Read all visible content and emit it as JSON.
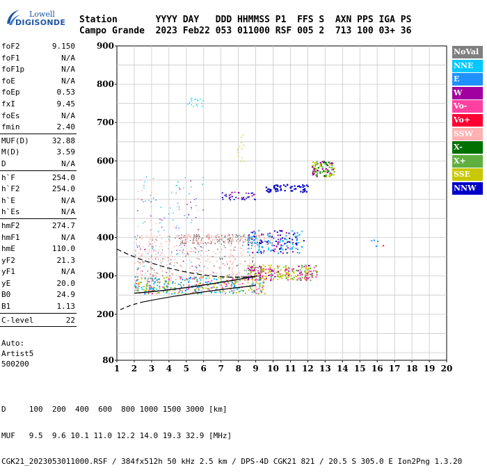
{
  "logo": {
    "line1": "Lowell",
    "line2": "DIGISONDE"
  },
  "header": {
    "labels": "Station       YYYY DAY   DDD HHMMSS P1  FFS S  AXN PPS IGA PS",
    "values": "Campo Grande  2023 Feb22 053 011000 RSF 005 2  713 100 03+ 36"
  },
  "params": [
    {
      "name": "foF2",
      "value": "9.150"
    },
    {
      "name": "foF1",
      "value": "N/A"
    },
    {
      "name": "foF1p",
      "value": "N/A"
    },
    {
      "name": "foE",
      "value": "N/A"
    },
    {
      "name": "foEp",
      "value": "0.53"
    },
    {
      "name": "fxI",
      "value": "9.45"
    },
    {
      "name": "foEs",
      "value": "N/A"
    },
    {
      "name": "fmin",
      "value": "2.40"
    },
    {
      "sep": true
    },
    {
      "name": "MUF(D)",
      "value": "32.88"
    },
    {
      "name": "M(D)",
      "value": "3.59"
    },
    {
      "name": "D",
      "value": "N/A"
    },
    {
      "sep": true
    },
    {
      "name": "h`F",
      "value": "254.0"
    },
    {
      "name": "h`F2",
      "value": "254.0"
    },
    {
      "name": "h`E",
      "value": "N/A"
    },
    {
      "name": "h`Es",
      "value": "N/A"
    },
    {
      "sep": true
    },
    {
      "name": "hmF2",
      "value": "274.7"
    },
    {
      "name": "hmF1",
      "value": "N/A"
    },
    {
      "name": "hmE",
      "value": "110.0"
    },
    {
      "name": "yF2",
      "value": "21.3"
    },
    {
      "name": "yF1",
      "value": "N/A"
    },
    {
      "name": "yE",
      "value": "20.0"
    },
    {
      "name": "B0",
      "value": "24.9"
    },
    {
      "name": "B1",
      "value": "1.13"
    },
    {
      "sep": true
    },
    {
      "name": "C-level",
      "value": "22"
    },
    {
      "sep": true
    }
  ],
  "auto": {
    "line1": "Auto:",
    "line2": "Artist5",
    "line3": "500200"
  },
  "axes": {
    "y_ticks": [
      "900",
      "800",
      "700",
      "600",
      "500",
      "400",
      "300",
      "200",
      "80"
    ],
    "x_ticks": [
      "1",
      "2",
      "3",
      "4",
      "5",
      "6",
      "7",
      "8",
      "9",
      "10",
      "11",
      "12",
      "13",
      "14",
      "15",
      "16",
      "17",
      "18",
      "19",
      "20"
    ]
  },
  "legend": [
    {
      "label": "NoVal",
      "color": "#808080"
    },
    {
      "label": "NNE",
      "color": "#00c8ff"
    },
    {
      "label": "E",
      "color": "#1e90ff"
    },
    {
      "label": "W",
      "color": "#a000a0"
    },
    {
      "label": "Vo-",
      "color": "#ff40a0"
    },
    {
      "label": "Vo+",
      "color": "#ff0033"
    },
    {
      "label": "SSW",
      "color": "#ffb0b0"
    },
    {
      "label": "X-",
      "color": "#007000"
    },
    {
      "label": "X+",
      "color": "#60b040"
    },
    {
      "label": "SSE",
      "color": "#c8c800"
    },
    {
      "label": "NNW",
      "color": "#0000c8"
    }
  ],
  "footer": {
    "line1": "D     100  200  400  600  800 1000 1500 3000 [km]",
    "line2": "MUF   9.5  9.6 10.1 11.0 12.2 14.0 19.3 32.9 [MHz]",
    "line3": "CGK21_2023053011000.RSF / 384fx512h 50 kHz 2.5 km / DPS-4D CGK21 821 / 20.5 S 305.0 E Ion2Png 1.3.20"
  }
}
